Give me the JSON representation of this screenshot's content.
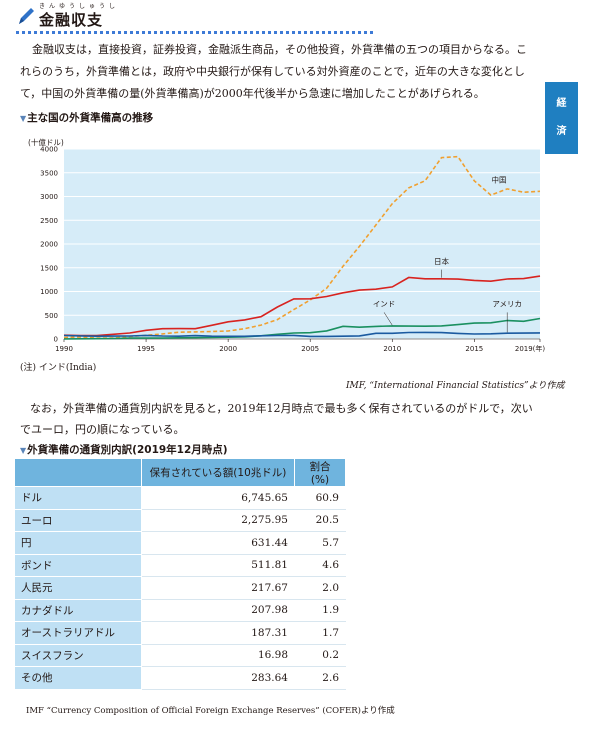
{
  "header": {
    "title": "金融収支",
    "ruby": "きんゆうしゅうし"
  },
  "side_tab": {
    "chars": [
      "経",
      "済"
    ]
  },
  "intro": {
    "lines": [
      "金融収支は，直接投資，証券投資，金融派生商品，その他投資，外貨準備の五つの項目からなる。こ",
      "れらのうち，外貨準備とは，政府や中央銀行が保有している対外資産のことで，近年の大きな変化とし",
      "て，中国の外貨準備の量(外貨準備高)が2000年代後半から急速に増加したことがあげられる。"
    ]
  },
  "chart_section_title": "主な国の外貨準備高の推移",
  "chart_data": {
    "type": "line",
    "title": "主な国の外貨準備高の推移",
    "ylabel": "(十億ドル)",
    "xlabel": "",
    "x_ticks": [
      "1990",
      "1995",
      "2000",
      "2005",
      "2010",
      "2015",
      "2019(年)"
    ],
    "y_ticks": [
      0,
      500,
      1000,
      1500,
      2000,
      2500,
      3000,
      3500,
      4000
    ],
    "ylim": [
      0,
      4000
    ],
    "xlim": [
      1990,
      2019
    ],
    "grid": true,
    "series": [
      {
        "name": "中国",
        "style": "dashed",
        "color": "#f0a030",
        "x": [
          1990,
          1991,
          1992,
          1993,
          1994,
          1995,
          1996,
          1997,
          1998,
          1999,
          2000,
          2001,
          2002,
          2003,
          2004,
          2005,
          2006,
          2007,
          2008,
          2009,
          2010,
          2011,
          2012,
          2013,
          2014,
          2015,
          2016,
          2017,
          2018,
          2019
        ],
        "values": [
          30,
          43,
          20,
          22,
          53,
          75,
          107,
          143,
          149,
          158,
          168,
          216,
          292,
          409,
          619,
          822,
          1068,
          1530,
          1950,
          2400,
          2850,
          3180,
          3330,
          3820,
          3840,
          3330,
          3030,
          3160,
          3090,
          3110
        ]
      },
      {
        "name": "日本",
        "style": "solid",
        "color": "#d8231f",
        "x": [
          1990,
          1991,
          1992,
          1993,
          1994,
          1995,
          1996,
          1997,
          1998,
          1999,
          2000,
          2001,
          2002,
          2003,
          2004,
          2005,
          2006,
          2007,
          2008,
          2009,
          2010,
          2011,
          2012,
          2013,
          2014,
          2015,
          2016,
          2017,
          2018,
          2019
        ],
        "values": [
          79,
          72,
          72,
          99,
          126,
          184,
          217,
          220,
          216,
          288,
          362,
          402,
          469,
          673,
          844,
          847,
          895,
          973,
          1030,
          1049,
          1096,
          1295,
          1268,
          1267,
          1261,
          1233,
          1217,
          1264,
          1271,
          1324
        ]
      },
      {
        "name": "インド",
        "style": "solid",
        "color": "#1a9060",
        "x": [
          1990,
          1991,
          1992,
          1993,
          1994,
          1995,
          1996,
          1997,
          1998,
          1999,
          2000,
          2001,
          2002,
          2003,
          2004,
          2005,
          2006,
          2007,
          2008,
          2009,
          2010,
          2011,
          2012,
          2013,
          2014,
          2015,
          2016,
          2017,
          2018,
          2019
        ],
        "values": [
          2,
          4,
          6,
          11,
          20,
          18,
          20,
          25,
          27,
          33,
          38,
          46,
          68,
          99,
          127,
          132,
          171,
          267,
          248,
          265,
          275,
          271,
          270,
          276,
          303,
          334,
          342,
          390,
          373,
          432
        ]
      },
      {
        "name": "アメリカ",
        "style": "solid",
        "color": "#1a5aa0",
        "x": [
          1990,
          1991,
          1992,
          1993,
          1994,
          1995,
          1996,
          1997,
          1998,
          1999,
          2000,
          2001,
          2002,
          2003,
          2004,
          2005,
          2006,
          2007,
          2008,
          2009,
          2010,
          2011,
          2012,
          2013,
          2014,
          2015,
          2016,
          2017,
          2018,
          2019
        ],
        "values": [
          73,
          66,
          60,
          62,
          63,
          75,
          64,
          58,
          71,
          60,
          56,
          57,
          68,
          74,
          76,
          54,
          55,
          59,
          66,
          120,
          121,
          136,
          139,
          135,
          118,
          106,
          109,
          123,
          125,
          128
        ]
      }
    ]
  },
  "chart_note": "(注) インド(India)",
  "chart_source": "IMF, “International Financial Statistics”より作成",
  "mid_text": {
    "lines": [
      "なお，外貨準備の通貨別内訳を見ると，2019年12月時点で最も多く保有されているのがドルで，次い",
      "でユーロ，円の順になっている。"
    ]
  },
  "table_section_title": "外貨準備の通貨別内訳(2019年12月時点)",
  "table": {
    "headers": [
      "",
      "保有されている額(10兆ドル)",
      "割合(%)"
    ],
    "rows": [
      [
        "ドル",
        "6,745.65",
        "60.9"
      ],
      [
        "ユーロ",
        "2,275.95",
        "20.5"
      ],
      [
        "円",
        "631.44",
        "5.7"
      ],
      [
        "ポンド",
        "511.81",
        "4.6"
      ],
      [
        "人民元",
        "217.67",
        "2.0"
      ],
      [
        "カナダドル",
        "207.98",
        "1.9"
      ],
      [
        "オーストラリアドル",
        "187.31",
        "1.7"
      ],
      [
        "スイスフラン",
        "16.98",
        "0.2"
      ],
      [
        "その他",
        "283.64",
        "2.6"
      ]
    ]
  },
  "table_source": "IMF “Currency Composition of Official Foreign Exchange Reserves” (COFER)より作成"
}
